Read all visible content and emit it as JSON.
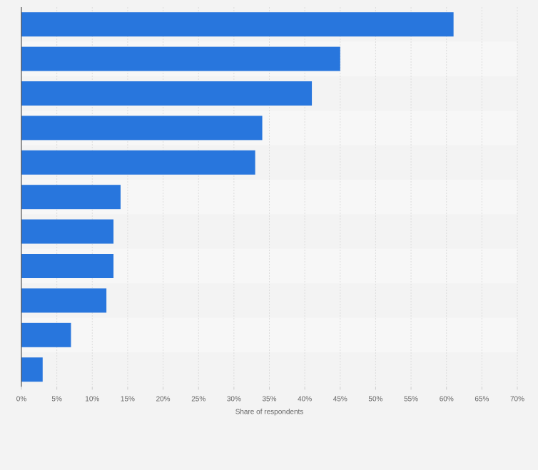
{
  "chart_data": {
    "type": "bar",
    "orientation": "horizontal",
    "categories": [
      "",
      "",
      "",
      "",
      "",
      "",
      "",
      "",
      "",
      "",
      ""
    ],
    "values": [
      61,
      45,
      41,
      34,
      33,
      14,
      13,
      13,
      12,
      7,
      3
    ],
    "xlabel": "Share of respondents",
    "ylabel": "",
    "xlim": [
      0,
      70
    ],
    "ticks": [
      0,
      5,
      10,
      15,
      20,
      25,
      30,
      35,
      40,
      45,
      50,
      55,
      60,
      65,
      70
    ],
    "tick_labels": [
      "0%",
      "5%",
      "10%",
      "15%",
      "20%",
      "25%",
      "30%",
      "35%",
      "40%",
      "45%",
      "50%",
      "55%",
      "60%",
      "65%",
      "70%"
    ],
    "grid": true,
    "bar_color": "#2876dd",
    "background_color": "#f3f3f3",
    "band_colors": [
      "#f3f3f3",
      "#f7f7f7"
    ],
    "grid_color": "#dcdcdc"
  }
}
